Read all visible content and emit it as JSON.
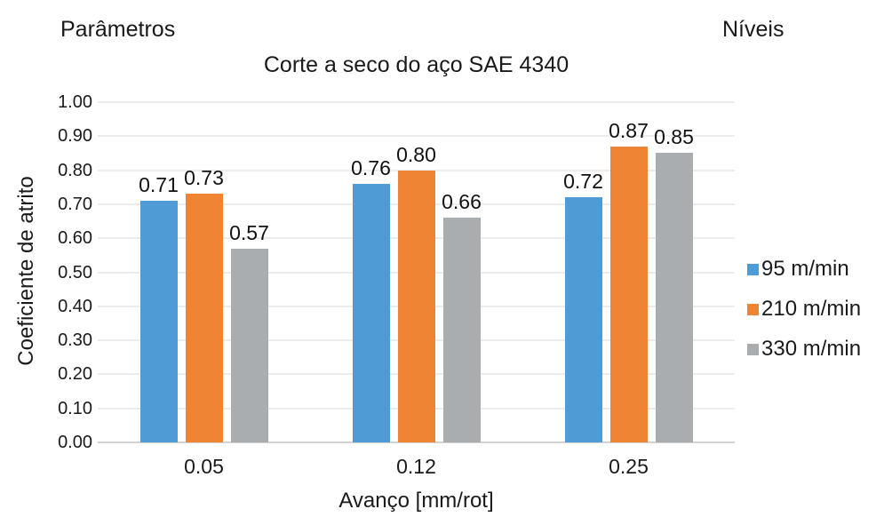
{
  "labels": {
    "top_left": "Parâmetros",
    "top_right": "Níveis"
  },
  "chart_data": {
    "type": "bar",
    "title": "Corte a seco do aço SAE 4340",
    "xlabel": "Avanço [mm/rot]",
    "ylabel": "Coeficiente de atrito",
    "categories": [
      "0.05",
      "0.12",
      "0.25"
    ],
    "series": [
      {
        "name": "95 m/min",
        "color": "#4E9BD5",
        "values": [
          0.71,
          0.76,
          0.72
        ]
      },
      {
        "name": "210 m/min",
        "color": "#EE8434",
        "values": [
          0.73,
          0.8,
          0.87
        ]
      },
      {
        "name": "330 m/min",
        "color": "#A9ADAF",
        "values": [
          0.57,
          0.66,
          0.85
        ]
      }
    ],
    "ylim": [
      0.0,
      1.0
    ],
    "ytick_step": 0.1,
    "ytick_labels": [
      "0.00",
      "0.10",
      "0.20",
      "0.30",
      "0.40",
      "0.50",
      "0.60",
      "0.70",
      "0.80",
      "0.90",
      "1.00"
    ],
    "grid": true,
    "legend_position": "right",
    "value_labels_shown": true,
    "value_label_format": "0.00"
  },
  "colors": {
    "gridline": "#ECECEC",
    "baseline": "#D2D2D2",
    "text": "#1a1a1a",
    "background": "#ffffff"
  }
}
